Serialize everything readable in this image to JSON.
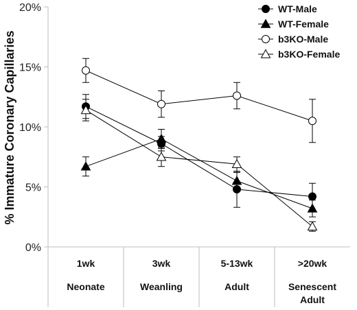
{
  "chart_data": {
    "type": "line",
    "ylabel": "% Immature Coronary Capillaries",
    "xlabel": "",
    "ylim": [
      0,
      20
    ],
    "y_ticks": [
      "0%",
      "5%",
      "10%",
      "15%",
      "20%"
    ],
    "y_tick_values": [
      0,
      5,
      10,
      15,
      20
    ],
    "categories": [
      "1wk",
      "3wk",
      "5-13wk",
      ">20wk"
    ],
    "category_groups": [
      "Neonate",
      "Weanling",
      "Adult",
      "Senescent Adult"
    ],
    "legend_position": "top-right",
    "grid": false,
    "series": [
      {
        "name": "WT-Male",
        "marker": "circle",
        "fill": "#000000",
        "values": [
          11.7,
          8.6,
          4.8,
          4.2
        ],
        "errors": [
          1.0,
          0.6,
          1.5,
          1.1
        ]
      },
      {
        "name": "WT-Female",
        "marker": "triangle",
        "fill": "#000000",
        "values": [
          6.7,
          9.0,
          5.5,
          3.2
        ],
        "errors": [
          0.8,
          0.8,
          0.7,
          0.7
        ]
      },
      {
        "name": "b3KO-Male",
        "marker": "circle",
        "fill": "#ffffff",
        "values": [
          14.7,
          11.9,
          12.6,
          10.5
        ],
        "errors": [
          1.0,
          1.1,
          1.1,
          1.8
        ]
      },
      {
        "name": "b3KO-Female",
        "marker": "triangle",
        "fill": "#ffffff",
        "values": [
          11.4,
          7.5,
          6.9,
          1.7
        ],
        "errors": [
          0.9,
          0.8,
          0.6,
          0.4
        ]
      }
    ]
  },
  "colors": {
    "axis": "#bdbdbd",
    "line": "#000000",
    "background": "#ffffff"
  }
}
